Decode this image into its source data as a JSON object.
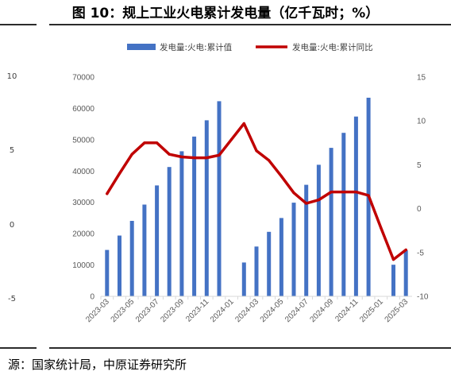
{
  "figure_title": "图 10：规上工业火电累计发电量（亿千瓦时；%）",
  "source_note": "源：国家统计局，中原证券研究所",
  "left_panel_ticks": [
    "10",
    "5",
    "0",
    "-5"
  ],
  "chart_data": {
    "type": "bar+line",
    "categories": [
      "2023-03",
      "2023-04",
      "2023-05",
      "2023-06",
      "2023-07",
      "2023-08",
      "2023-09",
      "2023-10",
      "2023-11",
      "2023-12",
      "2024-01",
      "2024-02",
      "2024-03",
      "2024-04",
      "2024-05",
      "2024-06",
      "2024-07",
      "2024-08",
      "2024-09",
      "2024-10",
      "2024-11",
      "2024-12",
      "2025-01",
      "2025-02",
      "2025-03"
    ],
    "x_tick_labels": [
      "2023-03",
      "2023-05",
      "2023-07",
      "2023-09",
      "2023-11",
      "2024-01",
      "2024-03",
      "2024-05",
      "2024-07",
      "2024-09",
      "2024-11",
      "2025-01",
      "2025-03"
    ],
    "series": [
      {
        "name": "发电量:火电:累计值",
        "kind": "bar",
        "axis": "left",
        "color": "#4472C4",
        "values": [
          14800,
          19400,
          24100,
          29300,
          35400,
          41300,
          46300,
          51000,
          56200,
          62300,
          null,
          10800,
          15900,
          20600,
          25000,
          29900,
          35600,
          42000,
          47400,
          52200,
          57400,
          63400,
          null,
          10100,
          14700
        ]
      },
      {
        "name": "发电量:火电:累计同比",
        "kind": "line",
        "axis": "right",
        "color": "#C00000",
        "values": [
          1.7,
          4.0,
          6.2,
          7.5,
          7.5,
          6.2,
          5.9,
          5.8,
          5.8,
          6.1,
          7.9,
          9.7,
          6.6,
          5.5,
          3.7,
          1.8,
          0.6,
          1.0,
          1.9,
          1.9,
          1.9,
          1.5,
          -2.2,
          -5.8,
          -4.7
        ]
      }
    ],
    "y_left": {
      "min": 0,
      "max": 70000,
      "ticks": [
        0,
        10000,
        20000,
        30000,
        40000,
        50000,
        60000,
        70000
      ]
    },
    "y_right": {
      "min": -10,
      "max": 15,
      "ticks": [
        -10,
        -5,
        0,
        5,
        10,
        15
      ]
    },
    "legend_position": "top",
    "grid": false
  }
}
